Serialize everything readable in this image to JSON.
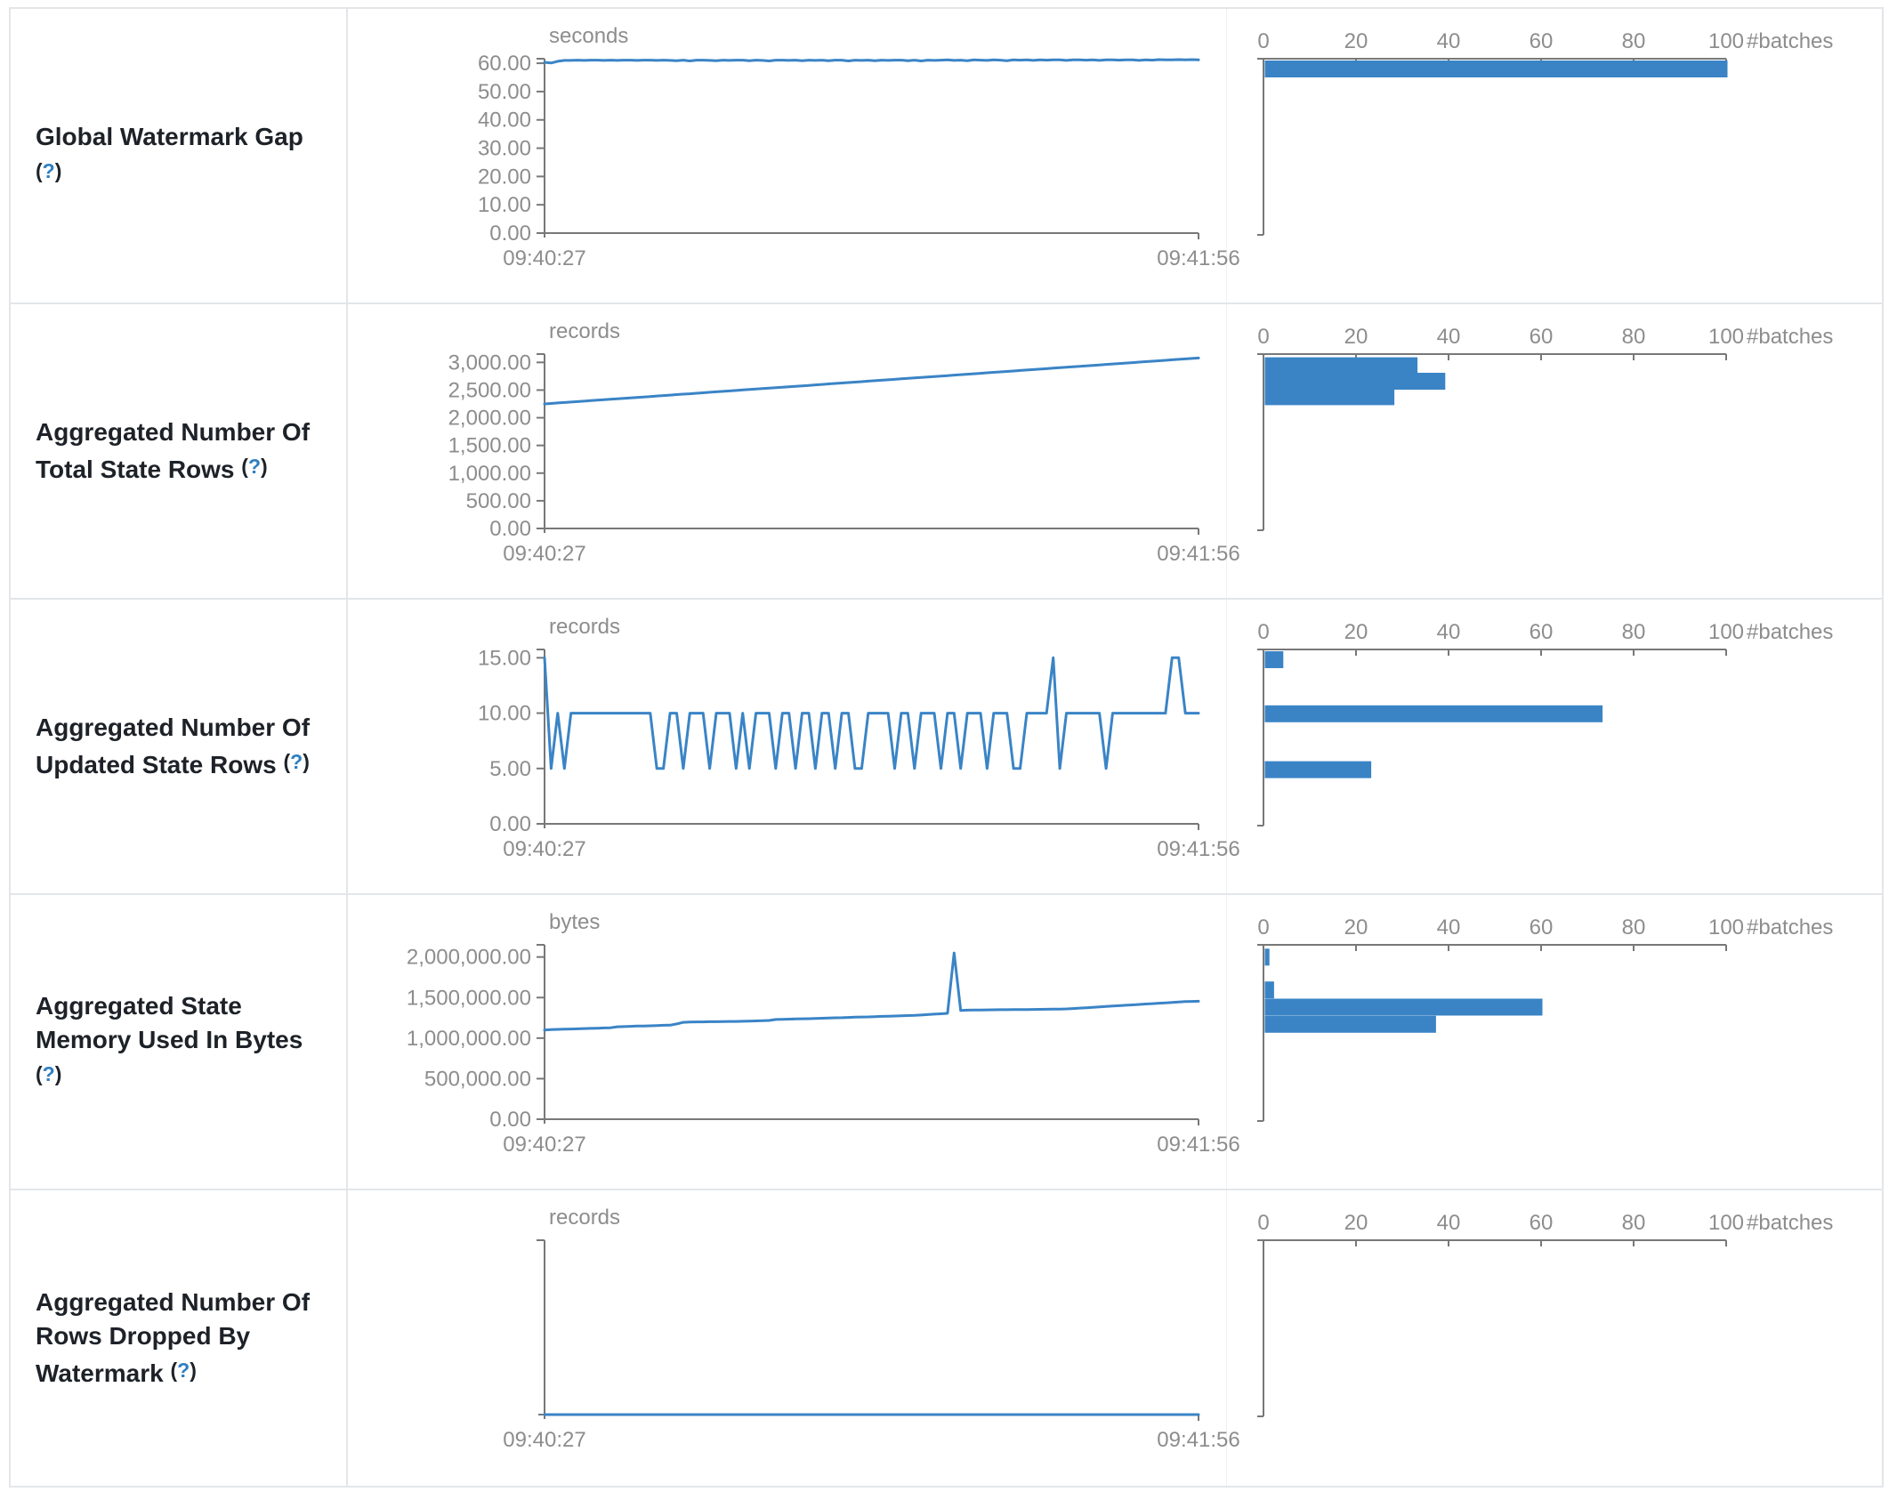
{
  "colors": {
    "series_blue": "#3a84c6",
    "bar_blue": "#3a84c6",
    "axis_gray": "#787878",
    "tick_text_gray": "#8d8d8d",
    "label_dark": "#1d2228",
    "help_blue": "#2f7fc1",
    "border_gray": "#e3e6e9",
    "background": "#ffffff"
  },
  "histogram_axis": {
    "tick_labels": [
      "0",
      "20",
      "40",
      "60",
      "80",
      "100"
    ],
    "max": 100,
    "unit": "#batches"
  },
  "time_axis": {
    "start": "09:40:27",
    "end": "09:41:56"
  },
  "chart_data": [
    {
      "id": "global-watermark-gap",
      "metric": "Global Watermark Gap",
      "label_lines": [
        "Global Watermark Gap",
        "(?)"
      ],
      "timeline": {
        "type": "line",
        "unit": "seconds",
        "x_start": "09:40:27",
        "x_end": "09:41:56",
        "y_tick_labels": [
          "60.00",
          "50.00",
          "40.00",
          "30.00",
          "20.00",
          "10.00",
          "0.00"
        ],
        "y_tick_values": [
          60,
          50,
          40,
          30,
          20,
          10,
          0
        ],
        "y_axis_max": 61.6,
        "values": [
          60.3,
          60.1,
          60.7,
          61.0,
          61.0,
          61.1,
          61.0,
          61.1,
          61.1,
          61.0,
          61.1,
          61.0,
          61.1,
          61.1,
          61.0,
          61.1,
          61.1,
          61.0,
          61.1,
          61.0,
          60.9,
          61.1,
          60.8,
          61.1,
          61.1,
          61.0,
          60.9,
          61.1,
          61.0,
          61.1,
          61.1,
          60.9,
          61.1,
          61.0,
          60.8,
          61.1,
          61.1,
          61.0,
          61.1,
          60.9,
          61.1,
          61.0,
          61.1,
          60.9,
          61.1,
          61.1,
          60.8,
          61.1,
          61.0,
          61.1,
          60.9,
          61.1,
          61.0,
          61.1,
          61.1,
          60.9,
          61.1,
          60.8,
          61.1,
          61.0,
          61.1,
          61.2,
          61.0,
          61.1,
          60.9,
          61.2,
          61.1,
          61.0,
          61.2,
          61.1,
          60.9,
          61.2,
          61.1,
          61.2,
          61.0,
          61.2,
          61.1,
          61.2,
          61.2,
          61.0,
          61.2,
          61.2,
          61.1,
          61.2,
          61.0,
          61.2,
          61.2,
          61.1,
          61.2,
          61.2,
          61.0,
          61.2,
          61.1,
          61.3,
          61.2,
          61.2,
          61.3,
          61.2,
          61.3,
          61.2
        ]
      },
      "histogram": {
        "type": "bar",
        "unit": "#batches",
        "bins": [
          {
            "value": 61,
            "count": 100
          }
        ]
      }
    },
    {
      "id": "total-state-rows",
      "metric": "Aggregated Number Of Total State Rows",
      "label_lines": [
        "Aggregated Number Of",
        "Total State Rows (?)"
      ],
      "timeline": {
        "type": "line",
        "unit": "records",
        "x_start": "09:40:27",
        "x_end": "09:41:56",
        "y_tick_labels": [
          "3,000.00",
          "2,500.00",
          "2,000.00",
          "1,500.00",
          "1,000.00",
          "500.00",
          "0.00"
        ],
        "y_tick_values": [
          3000,
          2500,
          2000,
          1500,
          1000,
          500,
          0
        ],
        "y_axis_max": 3150,
        "values": [
          2250,
          2258,
          2267,
          2275,
          2284,
          2292,
          2300,
          2309,
          2317,
          2325,
          2334,
          2342,
          2351,
          2359,
          2367,
          2376,
          2384,
          2393,
          2401,
          2409,
          2418,
          2426,
          2434,
          2443,
          2451,
          2460,
          2468,
          2476,
          2485,
          2493,
          2502,
          2510,
          2518,
          2527,
          2535,
          2543,
          2552,
          2560,
          2569,
          2577,
          2585,
          2594,
          2602,
          2611,
          2619,
          2627,
          2636,
          2644,
          2652,
          2661,
          2669,
          2678,
          2686,
          2694,
          2703,
          2711,
          2720,
          2728,
          2736,
          2745,
          2753,
          2761,
          2770,
          2778,
          2787,
          2795,
          2803,
          2812,
          2820,
          2829,
          2837,
          2845,
          2854,
          2862,
          2870,
          2879,
          2887,
          2896,
          2904,
          2912,
          2921,
          2929,
          2938,
          2946,
          2954,
          2963,
          2971,
          2979,
          2988,
          2996,
          3005,
          3013,
          3021,
          3030,
          3038,
          3047,
          3055,
          3063,
          3072,
          3080
        ]
      },
      "histogram": {
        "type": "bar",
        "unit": "#batches",
        "bins": [
          {
            "value": 2942,
            "count": 33
          },
          {
            "value": 2665,
            "count": 39
          },
          {
            "value": 2388,
            "count": 28
          }
        ]
      }
    },
    {
      "id": "updated-state-rows",
      "metric": "Aggregated Number Of Updated State Rows",
      "label_lines": [
        "Aggregated Number Of",
        "Updated State Rows (?)"
      ],
      "timeline": {
        "type": "line",
        "unit": "records",
        "x_start": "09:40:27",
        "x_end": "09:41:56",
        "y_tick_labels": [
          "15.00",
          "10.00",
          "5.00",
          "0.00"
        ],
        "y_tick_values": [
          15,
          10,
          5,
          0
        ],
        "y_axis_max": 15.75,
        "values": [
          15,
          5,
          10,
          5,
          10,
          10,
          10,
          10,
          10,
          10,
          10,
          10,
          10,
          10,
          10,
          10,
          10,
          5,
          5,
          10,
          10,
          5,
          10,
          10,
          10,
          5,
          10,
          10,
          10,
          5,
          10,
          5,
          10,
          10,
          10,
          5,
          10,
          10,
          5,
          10,
          10,
          5,
          10,
          10,
          5,
          10,
          10,
          5,
          5,
          10,
          10,
          10,
          10,
          5,
          10,
          10,
          5,
          10,
          10,
          10,
          5,
          10,
          10,
          5,
          10,
          10,
          10,
          5,
          10,
          10,
          10,
          5,
          5,
          10,
          10,
          10,
          10,
          15,
          5,
          10,
          10,
          10,
          10,
          10,
          10,
          5,
          10,
          10,
          10,
          10,
          10,
          10,
          10,
          10,
          10,
          15,
          15,
          10,
          10,
          10
        ]
      },
      "histogram": {
        "type": "bar",
        "unit": "#batches",
        "bins": [
          {
            "value": 15,
            "count": 4
          },
          {
            "value": 10,
            "count": 73
          },
          {
            "value": 5,
            "count": 23
          }
        ]
      }
    },
    {
      "id": "state-memory-bytes",
      "metric": "Aggregated State Memory Used In Bytes",
      "label_lines": [
        "Aggregated State",
        "Memory Used In Bytes",
        "(?)"
      ],
      "timeline": {
        "type": "line",
        "unit": "bytes",
        "x_start": "09:40:27",
        "x_end": "09:41:56",
        "y_tick_labels": [
          "2,000,000.00",
          "1,500,000.00",
          "1,000,000.00",
          "500,000.00",
          "0.00"
        ],
        "y_tick_values": [
          2000000,
          1500000,
          1000000,
          500000,
          0
        ],
        "y_axis_max": 2150000,
        "values": [
          1100000,
          1105000,
          1108000,
          1110000,
          1112000,
          1115000,
          1118000,
          1120000,
          1122000,
          1125000,
          1128000,
          1140000,
          1142000,
          1145000,
          1148000,
          1150000,
          1152000,
          1155000,
          1158000,
          1160000,
          1175000,
          1195000,
          1198000,
          1200000,
          1200000,
          1202000,
          1202000,
          1204000,
          1205000,
          1206000,
          1208000,
          1210000,
          1212000,
          1215000,
          1218000,
          1230000,
          1232000,
          1234000,
          1236000,
          1238000,
          1240000,
          1242000,
          1245000,
          1248000,
          1250000,
          1252000,
          1255000,
          1258000,
          1260000,
          1262000,
          1265000,
          1268000,
          1270000,
          1272000,
          1275000,
          1278000,
          1280000,
          1285000,
          1290000,
          1295000,
          1300000,
          1305000,
          2050000,
          1340000,
          1345000,
          1346000,
          1347000,
          1348000,
          1349000,
          1350000,
          1350000,
          1351000,
          1352000,
          1353000,
          1354000,
          1355000,
          1356000,
          1357000,
          1358000,
          1360000,
          1365000,
          1370000,
          1375000,
          1380000,
          1385000,
          1390000,
          1395000,
          1400000,
          1405000,
          1410000,
          1415000,
          1420000,
          1425000,
          1430000,
          1435000,
          1440000,
          1445000,
          1450000,
          1452000,
          1455000
        ]
      },
      "histogram": {
        "type": "bar",
        "unit": "#batches",
        "bins": [
          {
            "value": 2000000,
            "count": 1
          },
          {
            "value": 1600000,
            "count": 2
          },
          {
            "value": 1390000,
            "count": 60
          },
          {
            "value": 1180000,
            "count": 37
          }
        ]
      }
    },
    {
      "id": "rows-dropped-by-watermark",
      "metric": "Aggregated Number Of Rows Dropped By Watermark",
      "label_lines": [
        "Aggregated Number Of",
        "Rows Dropped By",
        "Watermark (?)"
      ],
      "timeline": {
        "type": "line",
        "unit": "records",
        "x_start": "09:40:27",
        "x_end": "09:41:56",
        "y_tick_labels": [],
        "y_tick_values": [],
        "y_axis_max": 1,
        "values": [
          0,
          0
        ]
      },
      "histogram": {
        "type": "bar",
        "unit": "#batches",
        "bins": []
      }
    }
  ]
}
